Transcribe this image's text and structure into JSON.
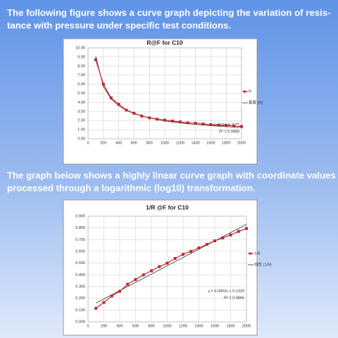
{
  "paragraphs": [
    {
      "lines": [
        "The following figure shows a curve graph depicting the variation of resis-",
        "tance with pressure under specific test conditions."
      ]
    },
    {
      "lines": [
        "The graph below shows a highly linear curve graph with coordinate values",
        "processed through a logarithmic (log10) transformation."
      ]
    }
  ],
  "chart_data": [
    {
      "type": "line",
      "title": "R@F  for C10",
      "xlim": [
        0,
        2000
      ],
      "xticks": [
        0,
        200,
        400,
        600,
        800,
        1000,
        1200,
        1400,
        1600,
        1800,
        2000
      ],
      "ylim": [
        0,
        10
      ],
      "yticks": [
        {
          "value": 0,
          "label": "0.00"
        },
        {
          "value": 1,
          "label": "1.00"
        },
        {
          "value": 2,
          "label": "2.00"
        },
        {
          "value": 3,
          "label": "3.00"
        },
        {
          "value": 4,
          "label": "4.00"
        },
        {
          "value": 5,
          "label": "5.00"
        },
        {
          "value": 6,
          "label": "6.00"
        },
        {
          "value": 7,
          "label": "7.00"
        },
        {
          "value": 8,
          "label": "8.00"
        },
        {
          "value": 9,
          "label": "9.00"
        },
        {
          "value": 10,
          "label": "10.00"
        }
      ],
      "grid": true,
      "series": [
        {
          "name": "R",
          "color": "#c0282d",
          "markers": true,
          "x": [
            100,
            200,
            300,
            400,
            500,
            600,
            700,
            800,
            900,
            1000,
            1100,
            1200,
            1300,
            1400,
            1500,
            1600,
            1700,
            1800,
            1900,
            2000
          ],
          "values": [
            8.7,
            6.0,
            4.5,
            3.8,
            3.15,
            2.8,
            2.5,
            2.3,
            2.15,
            2.05,
            1.95,
            1.85,
            1.75,
            1.7,
            1.62,
            1.55,
            1.5,
            1.45,
            1.4,
            1.35
          ]
        },
        {
          "name": "乘幂 (R)",
          "color": "#333333",
          "markers": false,
          "x": [
            100,
            200,
            300,
            400,
            500,
            600,
            800,
            1000,
            1200,
            1400,
            1600,
            1800,
            2000
          ],
          "values": [
            9.1,
            5.74,
            4.38,
            3.62,
            3.12,
            2.76,
            2.28,
            1.97,
            1.74,
            1.57,
            1.44,
            1.33,
            1.24
          ]
        }
      ],
      "equation": "y = 194.4x",
      "equation_exponent": "-0.665",
      "r_squared": "R² = 0.9989"
    },
    {
      "type": "line",
      "title": "1/R  @F for C10",
      "xlim": [
        0,
        2000
      ],
      "xticks": [
        0,
        200,
        400,
        600,
        800,
        1000,
        1200,
        1400,
        1600,
        1800,
        2000
      ],
      "ylim": [
        0,
        0.9
      ],
      "yticks": [
        {
          "value": 0,
          "label": "0.000"
        },
        {
          "value": 0.1,
          "label": "0.100"
        },
        {
          "value": 0.2,
          "label": "0.200"
        },
        {
          "value": 0.3,
          "label": "0.300"
        },
        {
          "value": 0.4,
          "label": "0.400"
        },
        {
          "value": 0.5,
          "label": "0.500"
        },
        {
          "value": 0.6,
          "label": "0.600"
        },
        {
          "value": 0.7,
          "label": "0.700"
        },
        {
          "value": 0.8,
          "label": "0.800"
        },
        {
          "value": 0.9,
          "label": "0.900"
        }
      ],
      "grid": true,
      "series": [
        {
          "name": "1/R",
          "color": "#c0282d",
          "markers": true,
          "x": [
            100,
            200,
            300,
            400,
            500,
            600,
            700,
            800,
            900,
            1000,
            1100,
            1200,
            1300,
            1400,
            1500,
            1600,
            1700,
            1800,
            1900,
            2000
          ],
          "values": [
            0.115,
            0.165,
            0.22,
            0.26,
            0.32,
            0.36,
            0.4,
            0.435,
            0.47,
            0.5,
            0.54,
            0.575,
            0.6,
            0.63,
            0.66,
            0.69,
            0.715,
            0.74,
            0.77,
            0.795
          ]
        },
        {
          "name": "线性 (1/R)",
          "color": "#333333",
          "markers": false,
          "x": [
            100,
            2000
          ],
          "values": [
            0.16,
            0.83
          ]
        }
      ],
      "equation": "y = 0.0003x + 0.1329",
      "r_squared": "R² = 0.9866"
    }
  ]
}
